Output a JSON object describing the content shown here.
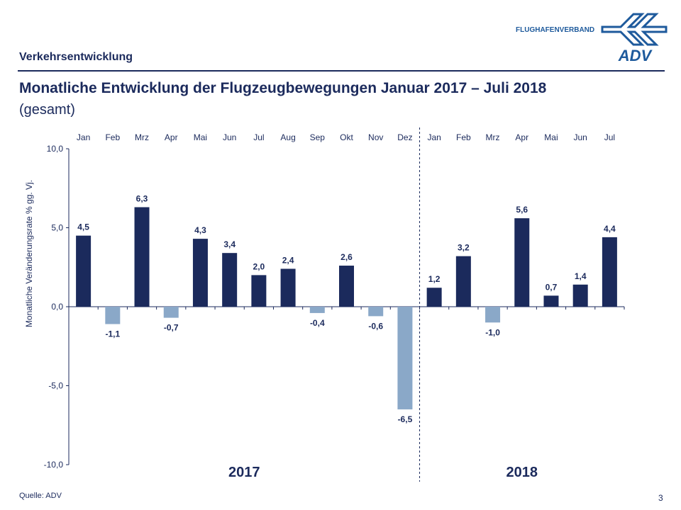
{
  "header": {
    "section": "Verkehrsentwicklung",
    "title": "Monatliche Entwicklung der Flugzeugbewegungen Januar 2017 – Juli 2018",
    "subtitle": "(gesamt)"
  },
  "logo": {
    "text": "FLUGHAFENVERBAND",
    "mark": "ADV"
  },
  "footer": {
    "source": "Quelle: ADV",
    "page": "3"
  },
  "colors": {
    "positive": "#1b2a5c",
    "negative": "#8aa8c8",
    "text": "#1b2a5c"
  },
  "chart_data": {
    "type": "bar",
    "categories": [
      "Jan",
      "Feb",
      "Mrz",
      "Apr",
      "Mai",
      "Jun",
      "Jul",
      "Aug",
      "Sep",
      "Okt",
      "Nov",
      "Dez",
      "Jan",
      "Feb",
      "Mrz",
      "Apr",
      "Mai",
      "Jun",
      "Jul"
    ],
    "values": [
      4.5,
      -1.1,
      6.3,
      -0.7,
      4.3,
      3.4,
      2.0,
      2.4,
      -0.4,
      2.6,
      -0.6,
      -6.5,
      1.2,
      3.2,
      -1.0,
      5.6,
      0.7,
      1.4,
      4.4
    ],
    "labels": [
      "4,5",
      "-1,1",
      "6,3",
      "-0,7",
      "4,3",
      "3,4",
      "2,0",
      "2,4",
      "-0,4",
      "2,6",
      "-0,6",
      "-6,5",
      "1,2",
      "3,2",
      "-1,0",
      "5,6",
      "0,7",
      "1,4",
      "4,4"
    ],
    "ylabel": "Monatliche Veränderungsrate % gg. Vj.",
    "ylim": [
      -10,
      10
    ],
    "yticks": [
      10,
      5,
      0,
      -5,
      -10
    ],
    "ytick_labels": [
      "10,0",
      "5,0",
      "0,0",
      "-5,0",
      "-10,0"
    ],
    "groups": [
      "2017",
      "2018"
    ],
    "grid": false,
    "legend": "none"
  }
}
